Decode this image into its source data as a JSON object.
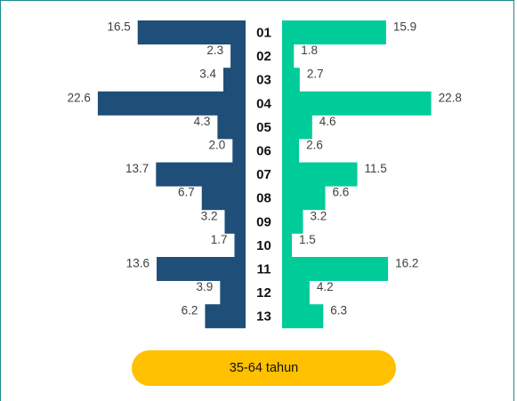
{
  "chart_data": {
    "type": "bar",
    "orientation": "horizontal-diverging",
    "categories": [
      "01",
      "02",
      "03",
      "04",
      "05",
      "06",
      "07",
      "08",
      "09",
      "10",
      "11",
      "12",
      "13"
    ],
    "series": [
      {
        "color": "#1f4e79",
        "side": "left",
        "values": [
          16.5,
          2.3,
          3.4,
          22.6,
          4.3,
          2.0,
          13.7,
          6.7,
          3.2,
          1.7,
          13.6,
          3.9,
          6.2
        ],
        "labels": [
          "16.5",
          "2.3",
          "3.4",
          "22.6",
          "4.3",
          "2.0",
          "13.7",
          "6.7",
          "3.2",
          "1.7",
          "13.6",
          "3.9",
          "6.2"
        ]
      },
      {
        "color": "#00cc99",
        "side": "right",
        "values": [
          15.9,
          1.8,
          2.7,
          22.8,
          4.6,
          2.6,
          11.5,
          6.6,
          3.2,
          1.5,
          16.2,
          4.2,
          6.3
        ],
        "labels": [
          "15.9",
          "1.8",
          "2.7",
          "22.8",
          "4.6",
          "2.6",
          "11.5",
          "6.6",
          "3.2",
          "1.5",
          "16.2",
          "4.2",
          "6.3"
        ]
      }
    ],
    "grid": false,
    "legend": "none"
  },
  "footer": {
    "age_group_label": "35-64 tahun",
    "color": "#ffc000"
  }
}
